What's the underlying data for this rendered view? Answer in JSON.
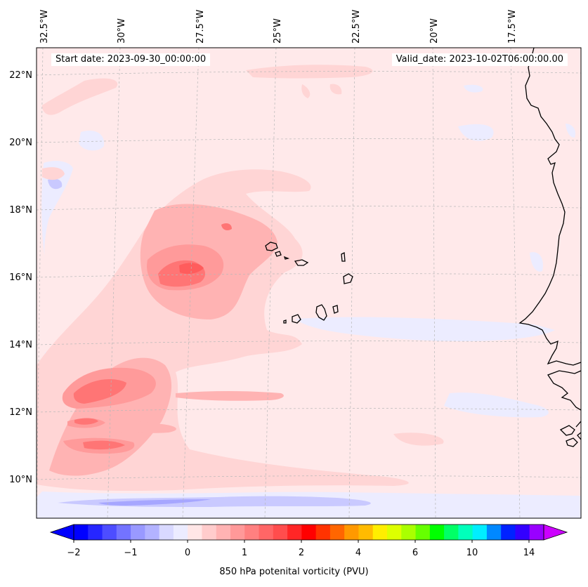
{
  "map": {
    "lon_labels": [
      "32.5°W",
      "30°W",
      "27.5°W",
      "25°W",
      "22.5°W",
      "20°W",
      "17.5°W"
    ],
    "lat_labels": [
      "22°N",
      "20°N",
      "18°N",
      "16°N",
      "14°N",
      "12°N",
      "10°N"
    ],
    "start_date": "Start date: 2023-09-30_00:00:00",
    "valid_date": "Valid_date: 2023-10-02T06:00:00.00"
  },
  "colorbar": {
    "title": "850 hPa potenital vorticity (PVU)",
    "tick_labels": [
      "−2",
      "−1",
      "0",
      "1",
      "2",
      "4",
      "6",
      "10",
      "14"
    ],
    "colors": [
      "#0000ff",
      "#2626ff",
      "#4d4dff",
      "#7373ff",
      "#9999ff",
      "#b3b3ff",
      "#d9d9ff",
      "#ececff",
      "#ffe6e6",
      "#ffcccc",
      "#ffb3b3",
      "#ff9999",
      "#ff8080",
      "#ff6666",
      "#ff4d4d",
      "#ff2626",
      "#ff0000",
      "#ff3300",
      "#ff6600",
      "#ff9900",
      "#ffbb00",
      "#ffee00",
      "#ddff00",
      "#aaff00",
      "#66ff00",
      "#00ff00",
      "#00ff66",
      "#00ffbb",
      "#00eeff",
      "#0088ff",
      "#0022ff",
      "#3300ff",
      "#9900ff"
    ],
    "under_color": "#0000ff",
    "over_color": "#cc00ff"
  },
  "colors": {
    "background_pv": "#ffe9ea",
    "light_pink": "#ffd5d5",
    "pink": "#ffb3b3",
    "salmon": "#ff9a9a",
    "red": "#ff7575",
    "light_blue": "#ececff",
    "blue": "#c9c9ff",
    "mid_blue": "#a6a6ff"
  },
  "chart_data": {
    "type": "heatmap",
    "title": "",
    "variable": "850 hPa potenital vorticity (PVU)",
    "lon_range": [
      -33,
      -15.8
    ],
    "lat_range": [
      8.9,
      22.8
    ],
    "colorbar_ticks": [
      -2,
      -1,
      0,
      1,
      2,
      4,
      6,
      10,
      14
    ],
    "max_region": {
      "lon": -28.5,
      "lat": 16.2
    },
    "grid": true
  }
}
